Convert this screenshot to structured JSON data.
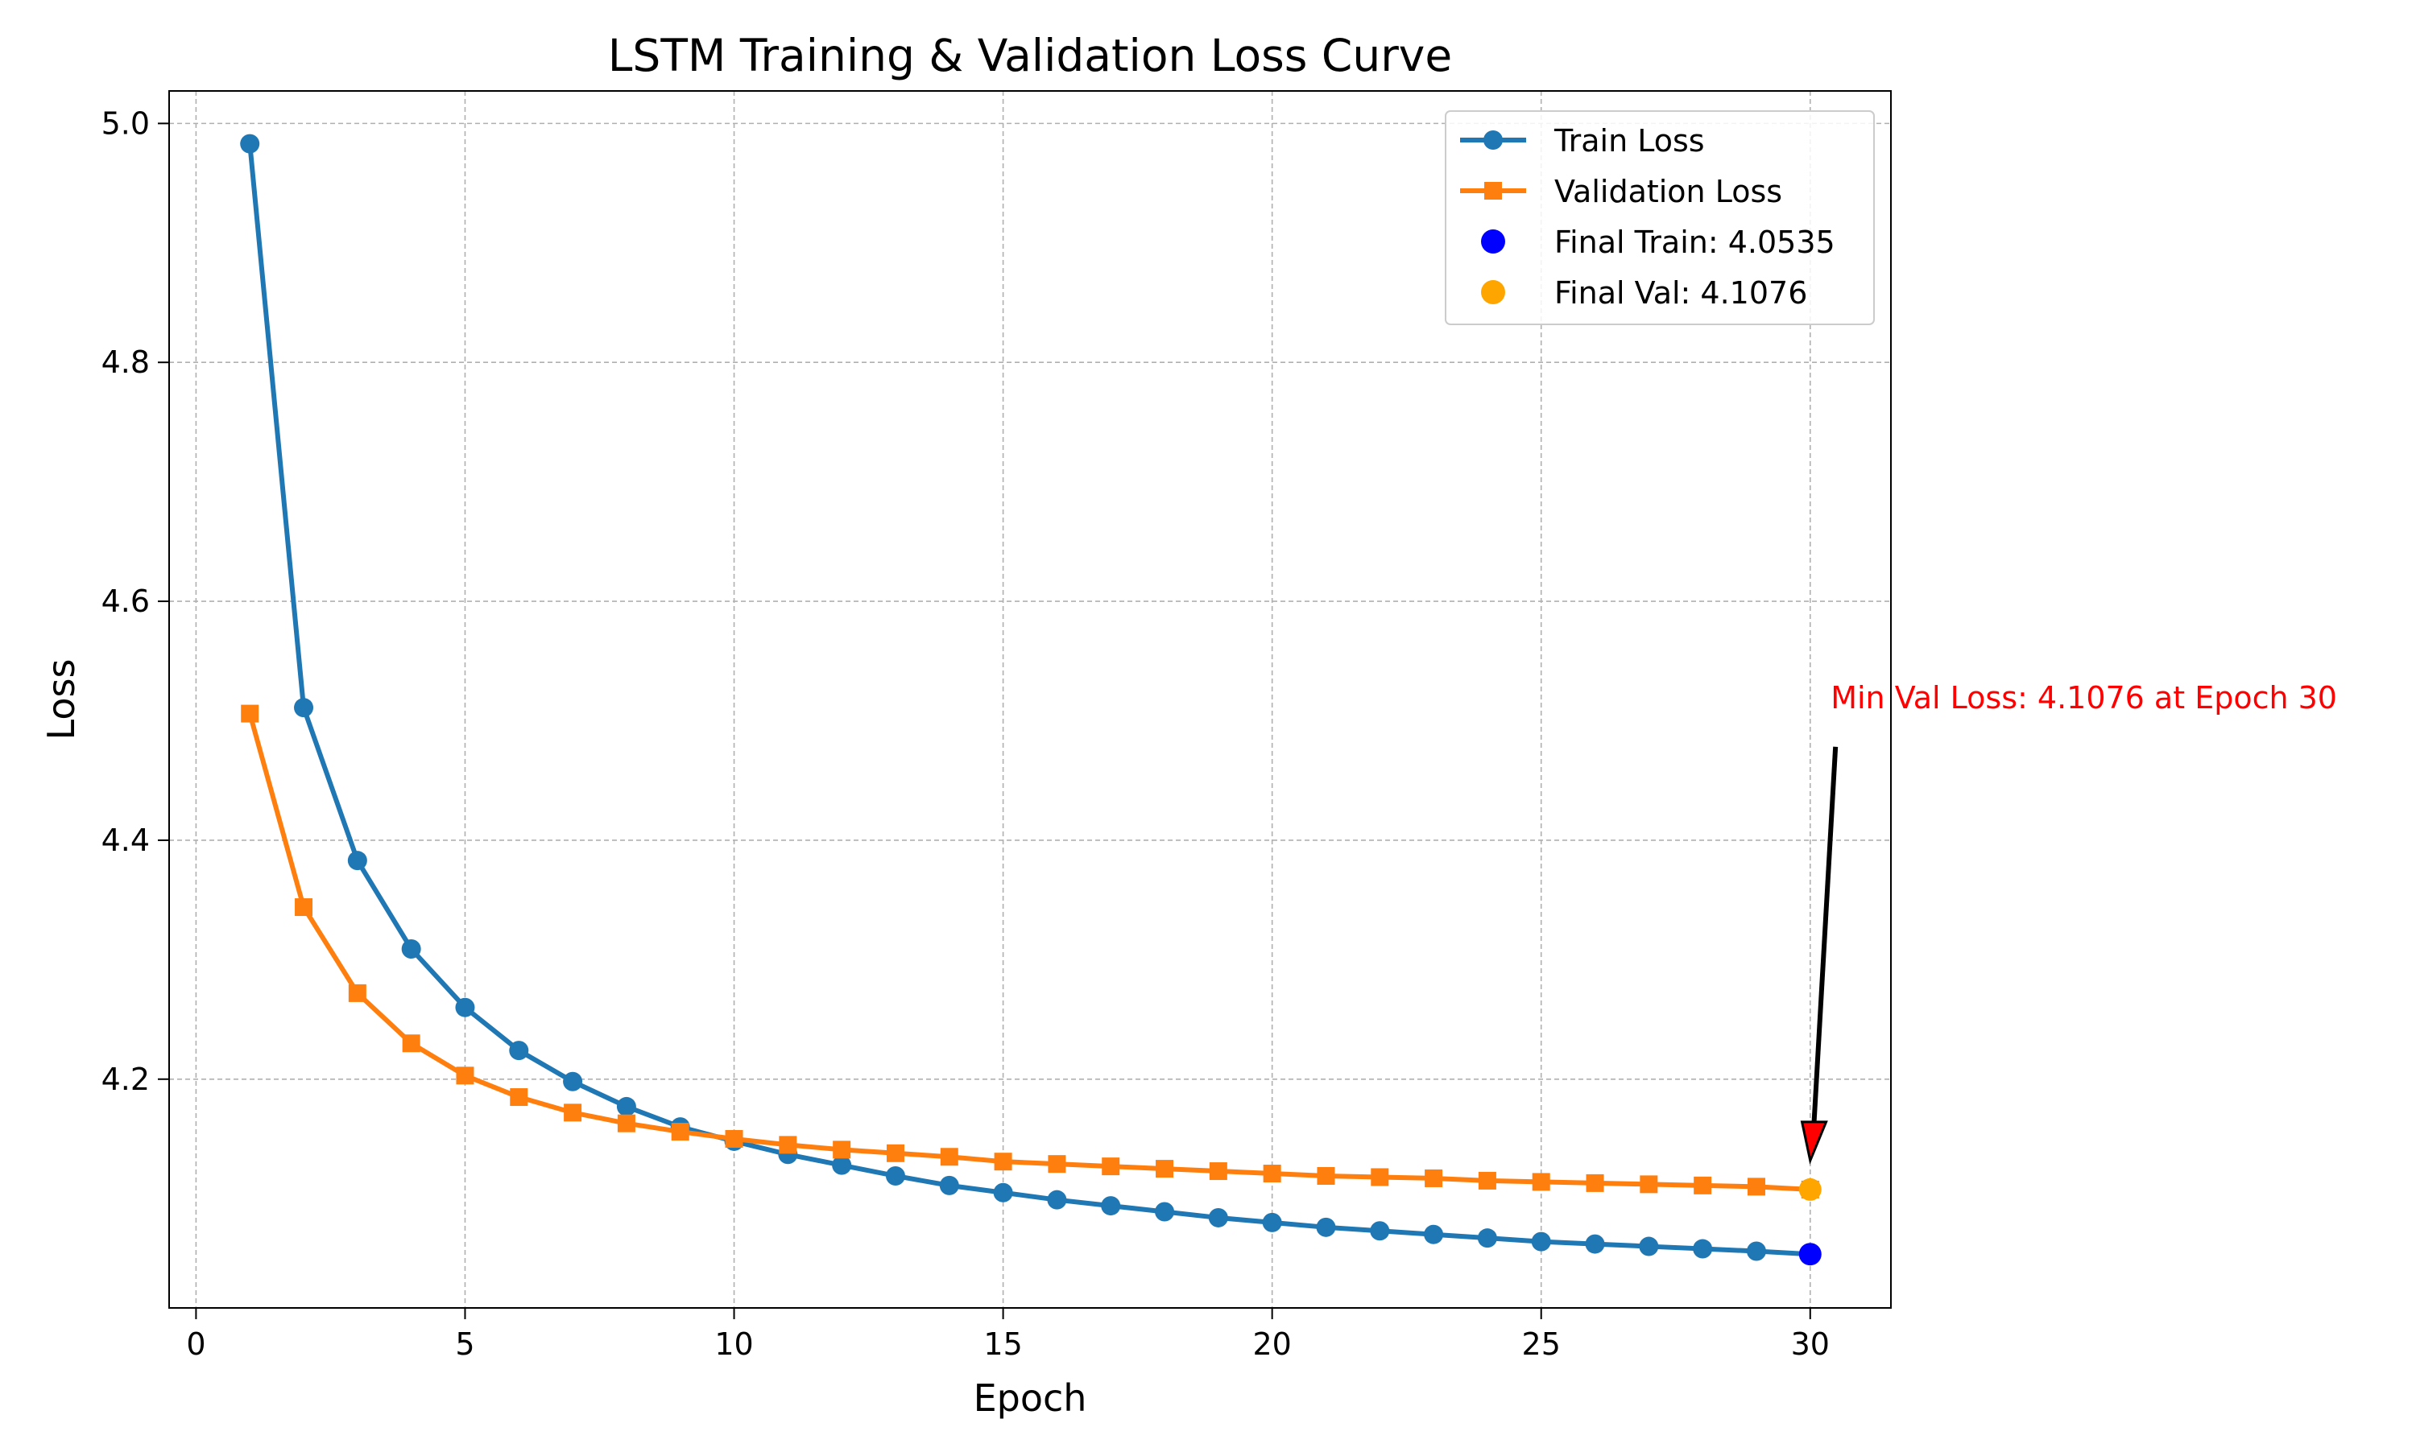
{
  "chart_data": {
    "type": "line",
    "title": "LSTM Training & Validation Loss Curve",
    "xlabel": "Epoch",
    "ylabel": "Loss",
    "xlim": [
      -0.5,
      31.5
    ],
    "ylim": [
      4.0085,
      5.0272
    ],
    "xticks": [
      0,
      5,
      10,
      15,
      20,
      25,
      30
    ],
    "yticks": [
      4.2,
      4.4,
      4.6,
      4.8,
      5.0
    ],
    "xtick_labels": [
      "0",
      "5",
      "10",
      "15",
      "20",
      "25",
      "30"
    ],
    "ytick_labels": [
      "4.2",
      "4.4",
      "4.6",
      "4.8",
      "5.0"
    ],
    "grid": true,
    "legend_position": "top-right",
    "x": [
      1,
      2,
      3,
      4,
      5,
      6,
      7,
      8,
      9,
      10,
      11,
      12,
      13,
      14,
      15,
      16,
      17,
      18,
      19,
      20,
      21,
      22,
      23,
      24,
      25,
      26,
      27,
      28,
      29,
      30
    ],
    "series": [
      {
        "name": "Train Loss",
        "color": "#1f77b4",
        "marker": "circle",
        "values": [
          4.983,
          4.511,
          4.383,
          4.309,
          4.26,
          4.224,
          4.198,
          4.177,
          4.16,
          4.148,
          4.137,
          4.128,
          4.119,
          4.111,
          4.105,
          4.099,
          4.094,
          4.089,
          4.084,
          4.08,
          4.076,
          4.073,
          4.07,
          4.067,
          4.064,
          4.062,
          4.06,
          4.058,
          4.056,
          4.0535
        ]
      },
      {
        "name": "Validation Loss",
        "color": "#ff7f0e",
        "marker": "square",
        "values": [
          4.506,
          4.344,
          4.272,
          4.23,
          4.203,
          4.185,
          4.172,
          4.163,
          4.156,
          4.15,
          4.145,
          4.141,
          4.138,
          4.135,
          4.131,
          4.129,
          4.127,
          4.125,
          4.123,
          4.121,
          4.119,
          4.118,
          4.117,
          4.115,
          4.114,
          4.113,
          4.112,
          4.111,
          4.11,
          4.1076
        ]
      }
    ],
    "final_points": [
      {
        "label": "Final Train: 4.0535",
        "x": 30,
        "y": 4.0535,
        "color": "#0000ff"
      },
      {
        "label": "Final Val: 4.1076",
        "x": 30,
        "y": 4.1076,
        "color": "#ffa500"
      }
    ],
    "annotation": {
      "text": "Min Val Loss: 4.1076 at Epoch 30",
      "x": 30,
      "y": 4.1076,
      "text_x": 30.5,
      "text_y": 4.52,
      "color": "#ff0000",
      "arrow_color": "#000000",
      "arrow_head_color": "#ff0000"
    }
  }
}
